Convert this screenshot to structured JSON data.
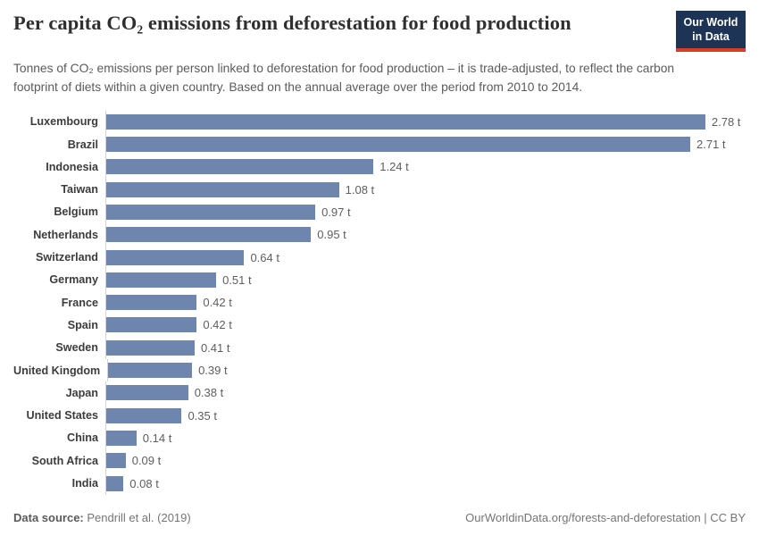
{
  "header": {
    "title": "Per capita CO₂ emissions from deforestation for food production",
    "subtitle": "Tonnes of CO₂ emissions per person linked to deforestation for food production – it is trade-adjusted, to reflect the carbon footprint of diets within a given country. Based on the annual average over the period from 2010 to 2014.",
    "logo": {
      "line1": "Our World",
      "line2": "in Data",
      "bg_color": "#1d3456",
      "accent_color": "#d93a33"
    }
  },
  "chart_data": {
    "type": "bar",
    "orientation": "horizontal",
    "title": "Per capita CO₂ emissions from deforestation for food production",
    "unit": "tonnes CO₂ per person",
    "xlim": [
      0,
      2.78
    ],
    "grid": false,
    "legend": "none",
    "bar_color": "#6e85ae",
    "categories": [
      "Luxembourg",
      "Brazil",
      "Indonesia",
      "Taiwan",
      "Belgium",
      "Netherlands",
      "Switzerland",
      "Germany",
      "France",
      "Spain",
      "Sweden",
      "United Kingdom",
      "Japan",
      "United States",
      "China",
      "South Africa",
      "India"
    ],
    "values": [
      2.78,
      2.71,
      1.24,
      1.08,
      0.97,
      0.95,
      0.64,
      0.51,
      0.42,
      0.42,
      0.41,
      0.39,
      0.38,
      0.35,
      0.14,
      0.09,
      0.08
    ],
    "labels": [
      "2.78 t",
      "2.71 t",
      "1.24 t",
      "1.08 t",
      "0.97 t",
      "0.95 t",
      "0.64 t",
      "0.51 t",
      "0.42 t",
      "0.42 t",
      "0.41 t",
      "0.39 t",
      "0.38 t",
      "0.35 t",
      "0.14 t",
      "0.09 t",
      "0.08 t"
    ]
  },
  "footer": {
    "datasource_label": "Data source:",
    "datasource_value": "Pendrill et al. (2019)",
    "url_text": "OurWorldinData.org/forests-and-deforestation | CC BY"
  }
}
